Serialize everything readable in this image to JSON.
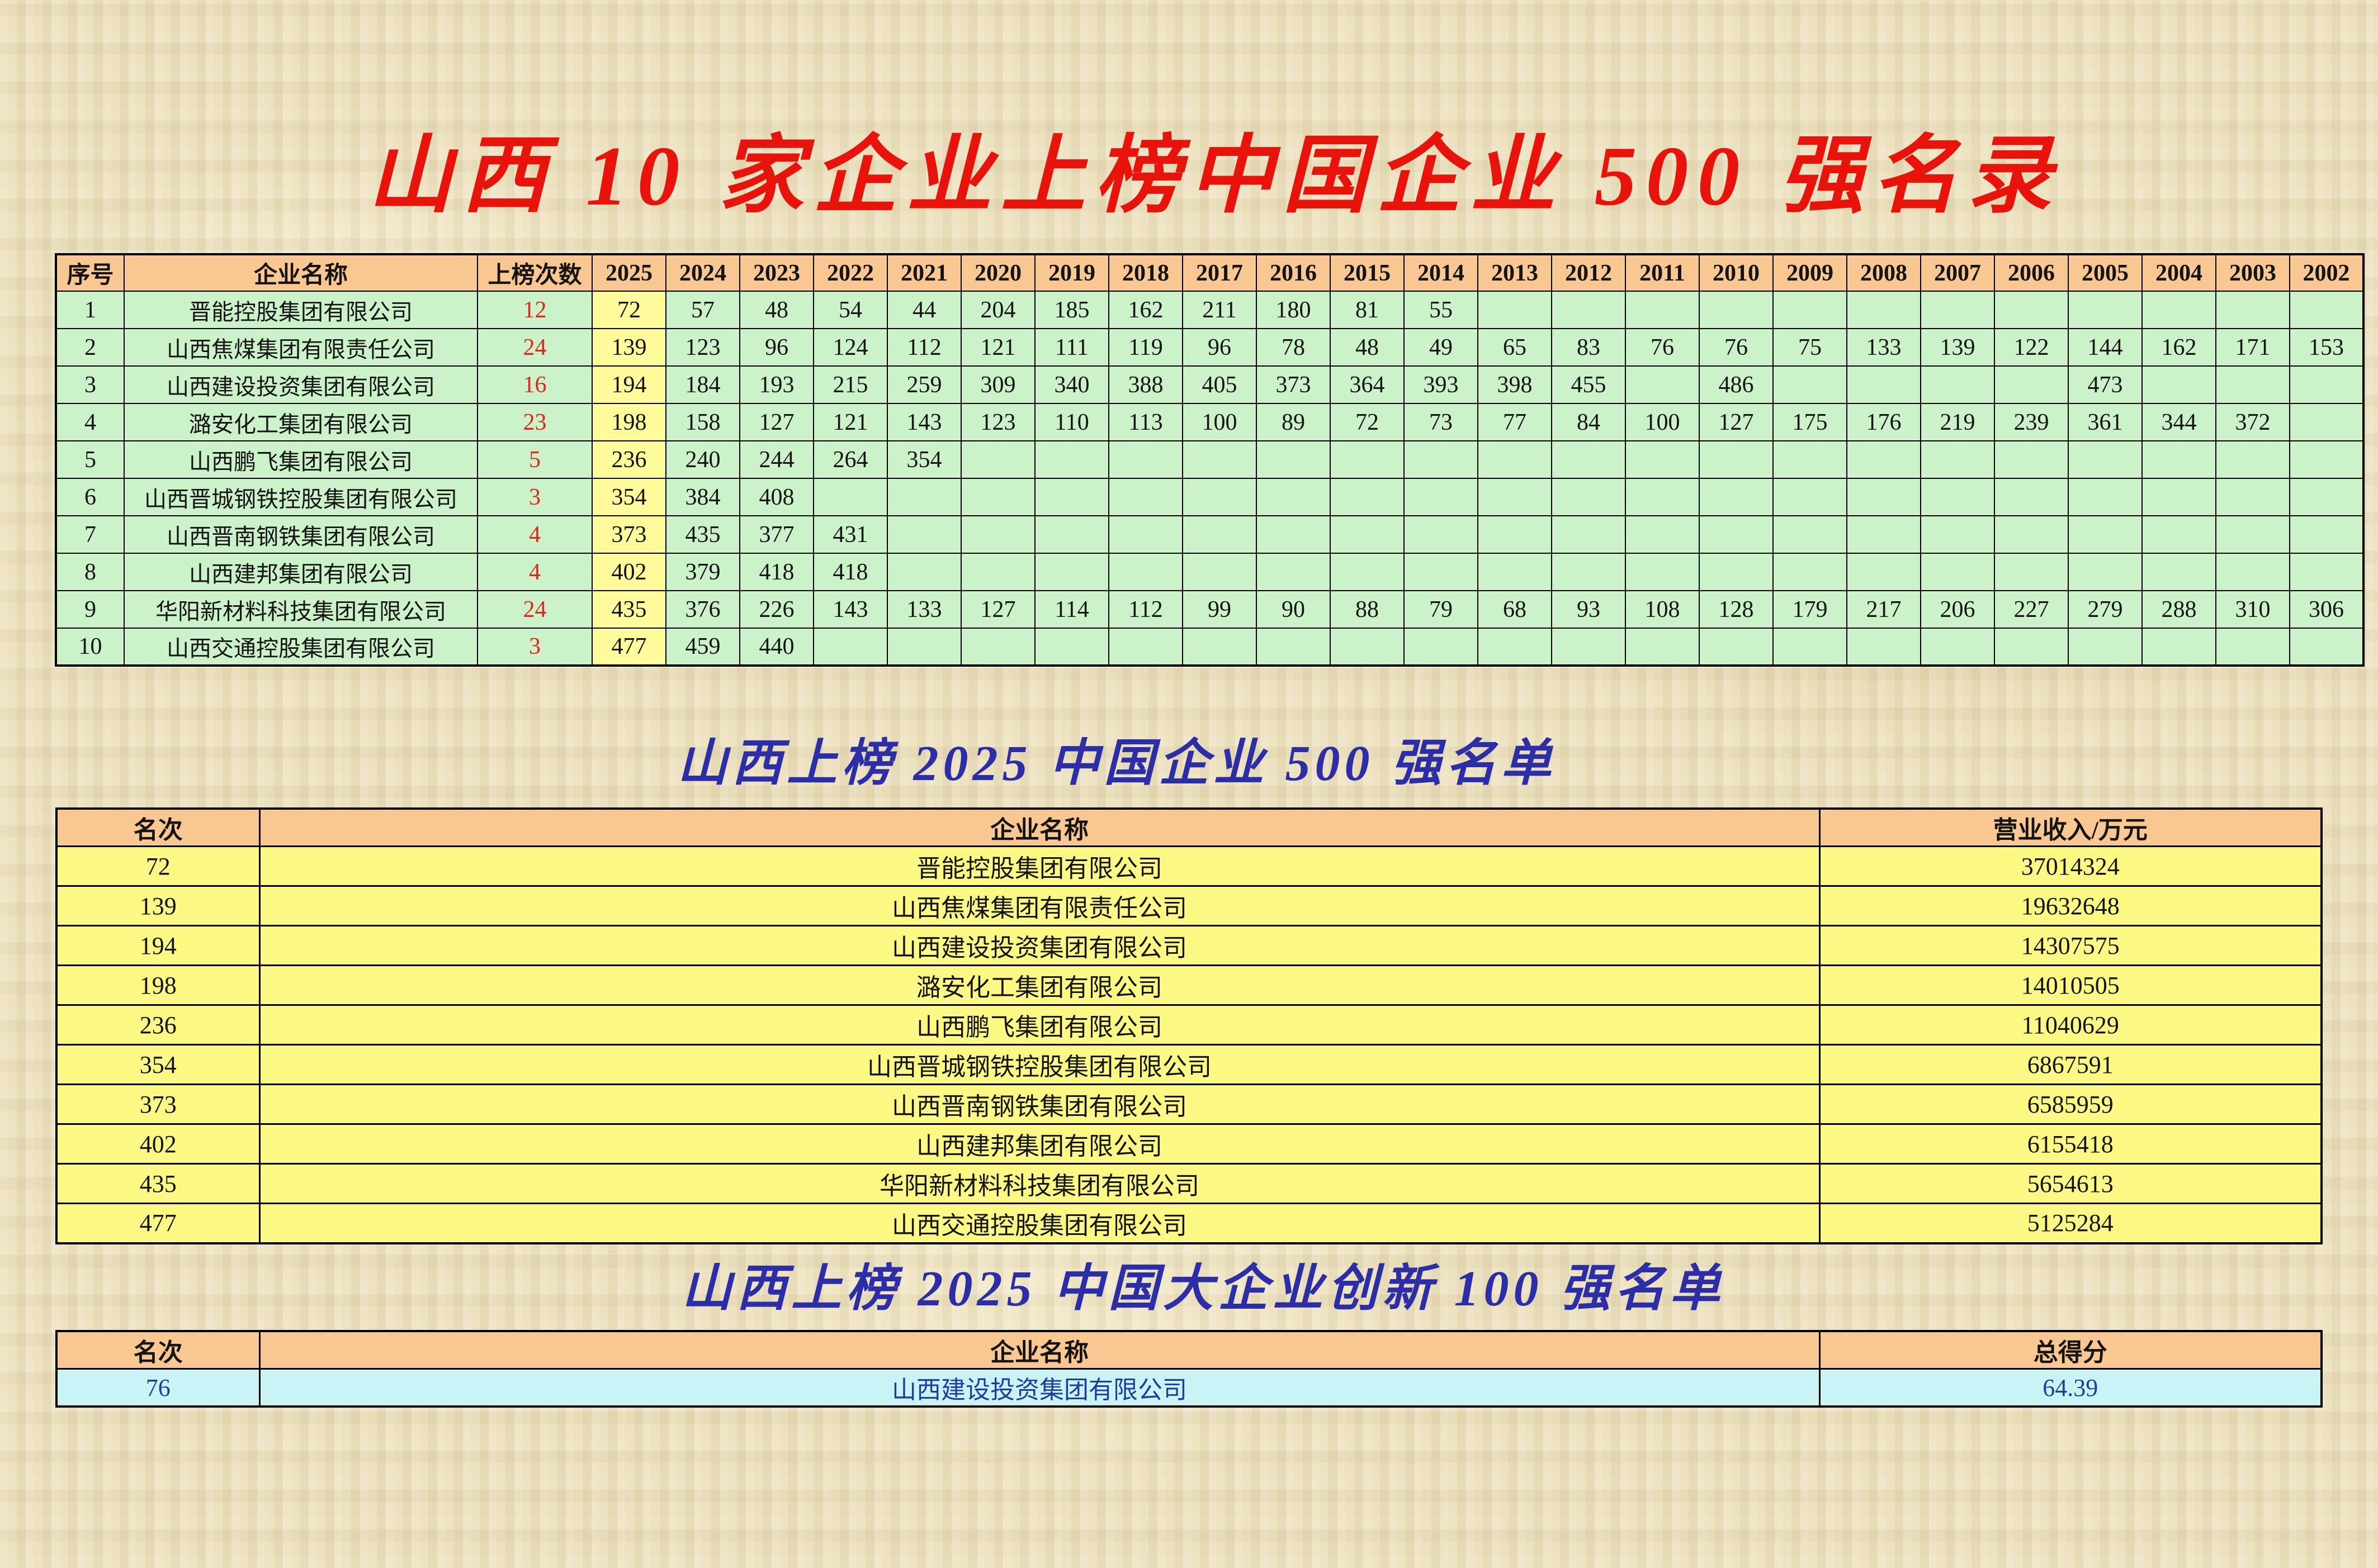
{
  "title1": "山西 10 家企业上榜中国企业 500 强名录",
  "title2": "山西上榜 2025 中国企业 500 强名单",
  "title3": "山西上榜 2025 中国大企业创新 100 强名单",
  "colors": {
    "background": "#EDE2BF",
    "title1_red": "#E8130B",
    "title_blue": "#2B2EA6",
    "header_peach": "#F9C791",
    "body_green": "#CBF2C8",
    "body_yellow": "#FBF883",
    "col2025_yellow": "#FFFB9B",
    "body_cyan": "#CAF3F5",
    "count_red": "#E2251B",
    "score_blue": "#1F3DA0",
    "border_black": "#000000"
  },
  "table1": {
    "headers": [
      "序号",
      "企业名称",
      "上榜次数",
      "2025",
      "2024",
      "2023",
      "2022",
      "2021",
      "2020",
      "2019",
      "2018",
      "2017",
      "2016",
      "2015",
      "2014",
      "2013",
      "2012",
      "2011",
      "2010",
      "2009",
      "2008",
      "2007",
      "2006",
      "2005",
      "2004",
      "2003",
      "2002"
    ],
    "rows": [
      {
        "no": "1",
        "name": "晋能控股集团有限公司",
        "count": "12",
        "years": [
          "72",
          "57",
          "48",
          "54",
          "44",
          "204",
          "185",
          "162",
          "211",
          "180",
          "81",
          "55",
          "",
          "",
          "",
          "",
          "",
          "",
          "",
          "",
          "",
          "",
          "",
          ""
        ]
      },
      {
        "no": "2",
        "name": "山西焦煤集团有限责任公司",
        "count": "24",
        "years": [
          "139",
          "123",
          "96",
          "124",
          "112",
          "121",
          "111",
          "119",
          "96",
          "78",
          "48",
          "49",
          "65",
          "83",
          "76",
          "76",
          "75",
          "133",
          "139",
          "122",
          "144",
          "162",
          "171",
          "153"
        ]
      },
      {
        "no": "3",
        "name": "山西建设投资集团有限公司",
        "count": "16",
        "years": [
          "194",
          "184",
          "193",
          "215",
          "259",
          "309",
          "340",
          "388",
          "405",
          "373",
          "364",
          "393",
          "398",
          "455",
          "",
          "486",
          "",
          "",
          "",
          "",
          "473",
          "",
          "",
          ""
        ]
      },
      {
        "no": "4",
        "name": "潞安化工集团有限公司",
        "count": "23",
        "years": [
          "198",
          "158",
          "127",
          "121",
          "143",
          "123",
          "110",
          "113",
          "100",
          "89",
          "72",
          "73",
          "77",
          "84",
          "100",
          "127",
          "175",
          "176",
          "219",
          "239",
          "361",
          "344",
          "372",
          ""
        ]
      },
      {
        "no": "5",
        "name": "山西鹏飞集团有限公司",
        "count": "5",
        "years": [
          "236",
          "240",
          "244",
          "264",
          "354",
          "",
          "",
          "",
          "",
          "",
          "",
          "",
          "",
          "",
          "",
          "",
          "",
          "",
          "",
          "",
          "",
          "",
          "",
          ""
        ]
      },
      {
        "no": "6",
        "name": "山西晋城钢铁控股集团有限公司",
        "count": "3",
        "years": [
          "354",
          "384",
          "408",
          "",
          "",
          "",
          "",
          "",
          "",
          "",
          "",
          "",
          "",
          "",
          "",
          "",
          "",
          "",
          "",
          "",
          "",
          "",
          "",
          ""
        ]
      },
      {
        "no": "7",
        "name": "山西晋南钢铁集团有限公司",
        "count": "4",
        "years": [
          "373",
          "435",
          "377",
          "431",
          "",
          "",
          "",
          "",
          "",
          "",
          "",
          "",
          "",
          "",
          "",
          "",
          "",
          "",
          "",
          "",
          "",
          "",
          "",
          ""
        ]
      },
      {
        "no": "8",
        "name": "山西建邦集团有限公司",
        "count": "4",
        "years": [
          "402",
          "379",
          "418",
          "418",
          "",
          "",
          "",
          "",
          "",
          "",
          "",
          "",
          "",
          "",
          "",
          "",
          "",
          "",
          "",
          "",
          "",
          "",
          "",
          ""
        ]
      },
      {
        "no": "9",
        "name": "华阳新材料科技集团有限公司",
        "count": "24",
        "years": [
          "435",
          "376",
          "226",
          "143",
          "133",
          "127",
          "114",
          "112",
          "99",
          "90",
          "88",
          "79",
          "68",
          "93",
          "108",
          "128",
          "179",
          "217",
          "206",
          "227",
          "279",
          "288",
          "310",
          "306"
        ]
      },
      {
        "no": "10",
        "name": "山西交通控股集团有限公司",
        "count": "3",
        "years": [
          "477",
          "459",
          "440",
          "",
          "",
          "",
          "",
          "",
          "",
          "",
          "",
          "",
          "",
          "",
          "",
          "",
          "",
          "",
          "",
          "",
          "",
          "",
          "",
          ""
        ]
      }
    ]
  },
  "table2": {
    "headers": [
      "名次",
      "企业名称",
      "营业收入/万元"
    ],
    "rows": [
      {
        "rank": "72",
        "name": "晋能控股集团有限公司",
        "revenue": "37014324"
      },
      {
        "rank": "139",
        "name": "山西焦煤集团有限责任公司",
        "revenue": "19632648"
      },
      {
        "rank": "194",
        "name": "山西建设投资集团有限公司",
        "revenue": "14307575"
      },
      {
        "rank": "198",
        "name": "潞安化工集团有限公司",
        "revenue": "14010505"
      },
      {
        "rank": "236",
        "name": "山西鹏飞集团有限公司",
        "revenue": "11040629"
      },
      {
        "rank": "354",
        "name": "山西晋城钢铁控股集团有限公司",
        "revenue": "6867591"
      },
      {
        "rank": "373",
        "name": "山西晋南钢铁集团有限公司",
        "revenue": "6585959"
      },
      {
        "rank": "402",
        "name": "山西建邦集团有限公司",
        "revenue": "6155418"
      },
      {
        "rank": "435",
        "name": "华阳新材料科技集团有限公司",
        "revenue": "5654613"
      },
      {
        "rank": "477",
        "name": "山西交通控股集团有限公司",
        "revenue": "5125284"
      }
    ]
  },
  "table3": {
    "headers": [
      "名次",
      "企业名称",
      "总得分"
    ],
    "rows": [
      {
        "rank": "76",
        "name": "山西建设投资集团有限公司",
        "score": "64.39"
      }
    ]
  }
}
